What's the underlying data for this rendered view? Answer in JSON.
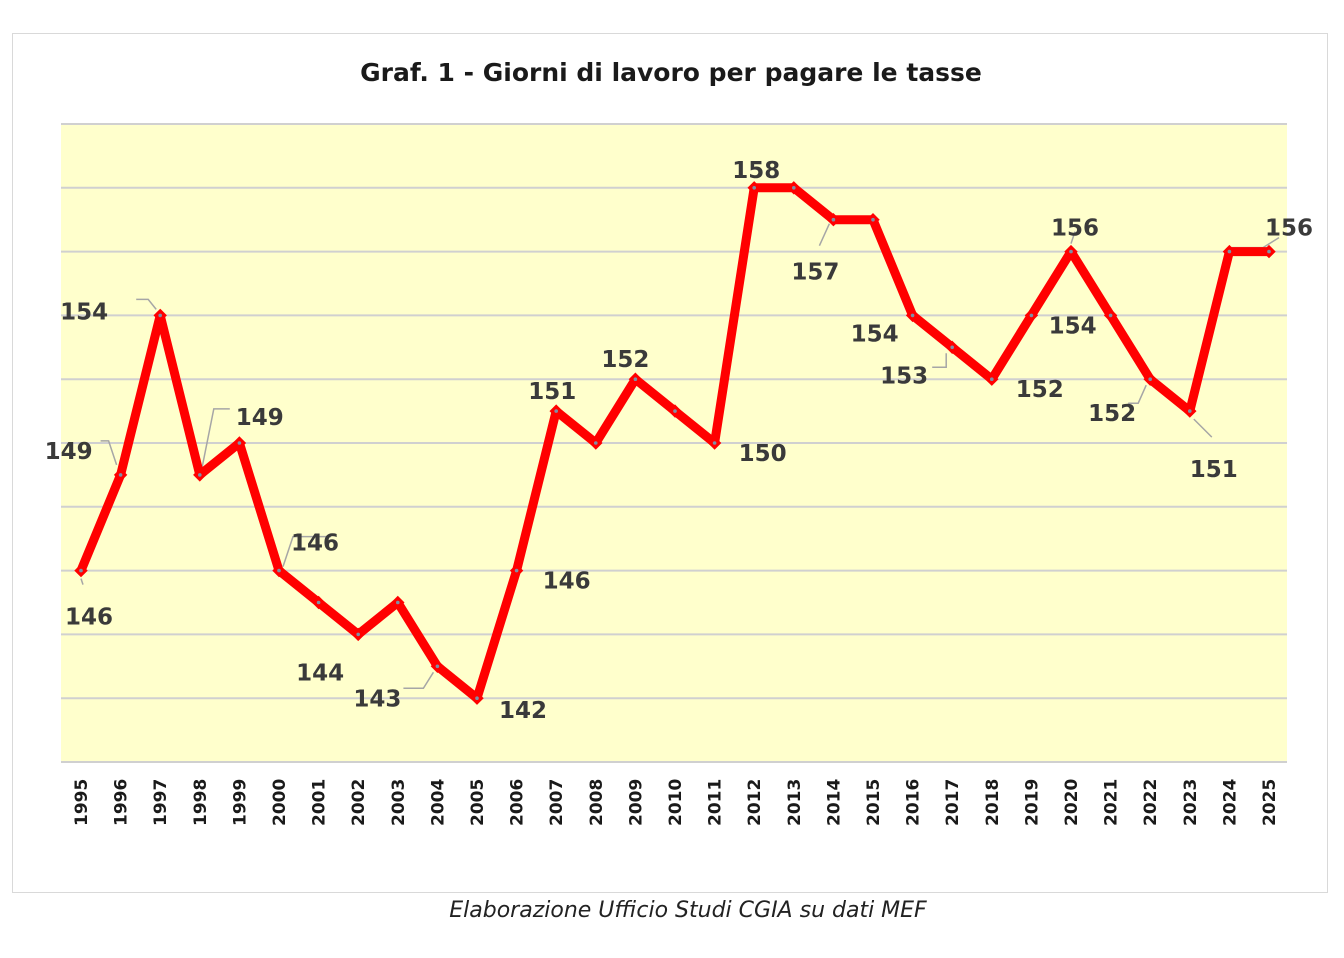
{
  "chart_data": {
    "type": "line",
    "title": "Graf. 1 - Giorni di lavoro per pagare le tasse",
    "xlabel": "",
    "ylabel": "",
    "categories": [
      "1995",
      "1996",
      "1997",
      "1998",
      "1999",
      "2000",
      "2001",
      "2002",
      "2003",
      "2004",
      "2005",
      "2006",
      "2007",
      "2008",
      "2009",
      "2010",
      "2011",
      "2012",
      "2013",
      "2014",
      "2015",
      "2016",
      "2017",
      "2018",
      "2019",
      "2020",
      "2021",
      "2022",
      "2023",
      "2024",
      "2025"
    ],
    "series": [
      {
        "values": [
          146,
          149,
          154,
          149,
          150,
          146,
          145,
          144,
          145,
          143,
          142,
          146,
          151,
          150,
          152,
          151,
          150,
          158,
          158,
          157,
          157,
          154,
          153,
          152,
          154,
          156,
          154,
          152,
          151,
          156,
          156
        ],
        "data_labels": [
          "146",
          "149",
          "154",
          "149",
          "",
          "146",
          "",
          "144",
          "",
          "143",
          "142",
          "146",
          "151",
          "",
          "152",
          "",
          "150",
          "158",
          "",
          "157",
          "",
          "154",
          "153",
          "152",
          "",
          "156",
          "154",
          "152",
          "151",
          "",
          "156"
        ]
      }
    ],
    "ylim": [
      140,
      160
    ],
    "y_tick_step": 2,
    "y_tick_labels_shown": false,
    "grid": true,
    "legend": "none",
    "line_color": "#ff0000",
    "plot_background": "#ffffcc"
  },
  "footer": {
    "source": "Elaborazione Ufficio Studi CGIA su dati MEF"
  }
}
